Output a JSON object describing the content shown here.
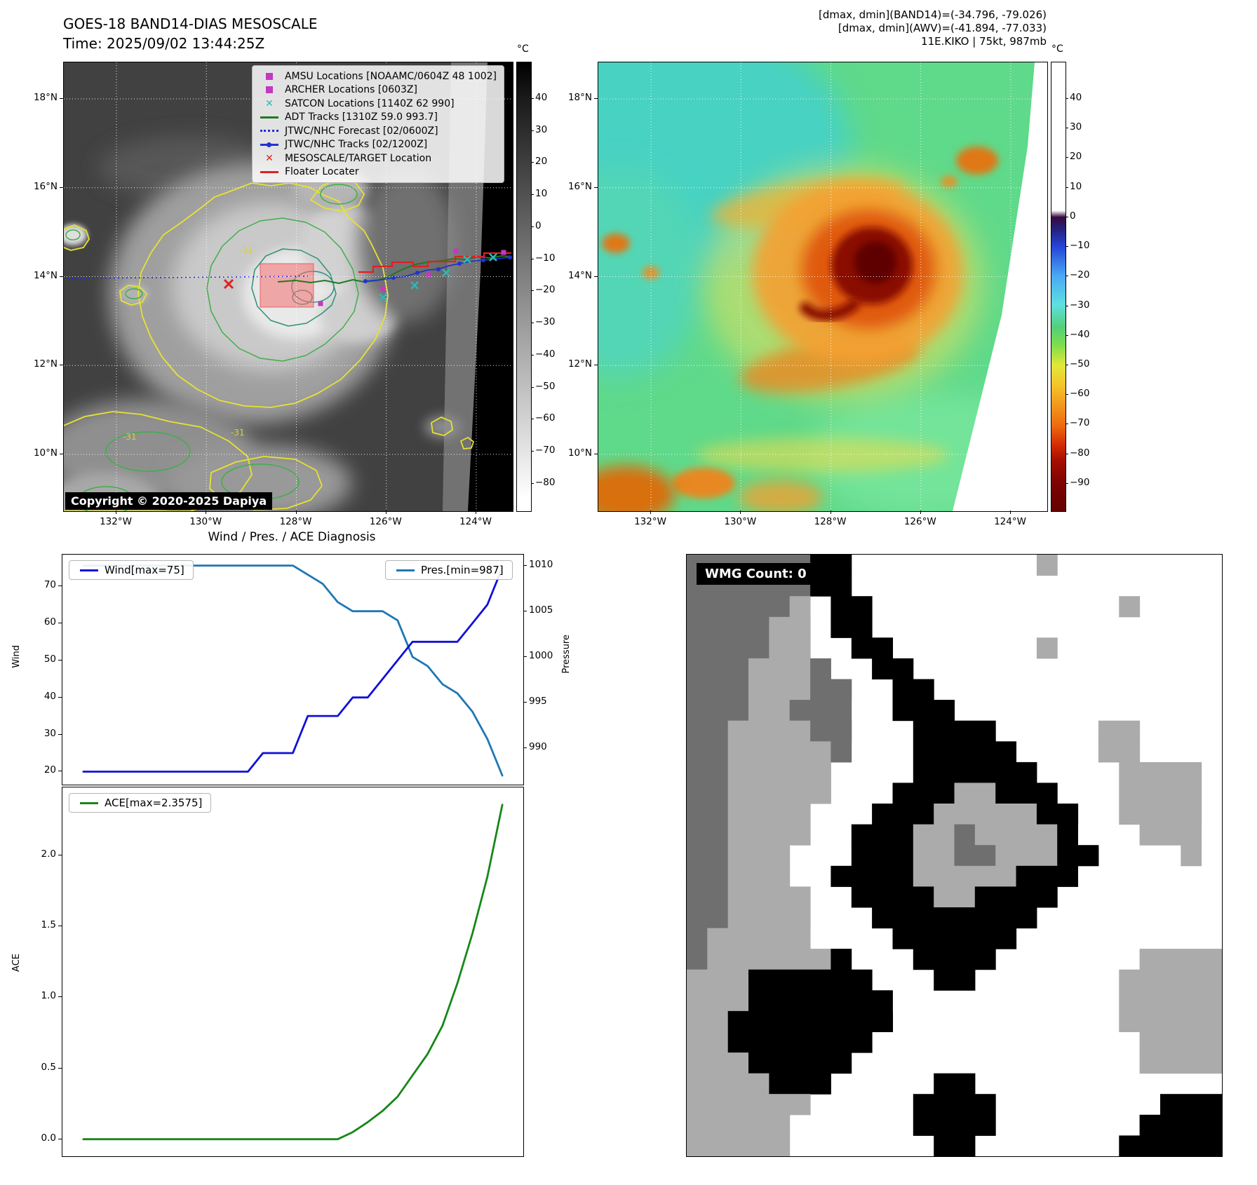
{
  "goes_panel": {
    "title": "GOES-18 BAND14-DIAS MESOSCALE",
    "subtitle": "Time: 2025/09/02 13:44:25Z",
    "copyright": "Copyright © 2020-2025 Dapiya",
    "contour_label": "-31",
    "colorbar_unit": "°C",
    "colorbar_ticks": [
      "40",
      "30",
      "20",
      "10",
      "0",
      "−10",
      "−20",
      "−30",
      "−40",
      "−50",
      "−60",
      "−70",
      "−80"
    ],
    "lat_ticks": [
      "18°N",
      "16°N",
      "14°N",
      "12°N",
      "10°N"
    ],
    "lon_ticks": [
      "132°W",
      "130°W",
      "128°W",
      "126°W",
      "124°W"
    ],
    "legend_items": [
      {
        "label": "AMSU Locations [NOAAMC/0604Z 48 1002]",
        "marker": "square",
        "color": "#c238c2"
      },
      {
        "label": "ARCHER Locations [0603Z]",
        "marker": "square",
        "color": "#c238c2"
      },
      {
        "label": "SATCON Locations [1140Z 62 990]",
        "marker": "x",
        "color": "#2cb8b8"
      },
      {
        "label": "ADT Tracks [1310Z 59.0 993.7]",
        "marker": "line",
        "color": "#1f7a1f"
      },
      {
        "label": "JTWC/NHC Forecast [02/0600Z]",
        "marker": "dotted",
        "color": "#2525e0"
      },
      {
        "label": "JTWC/NHC Tracks [02/1200Z]",
        "marker": "line-dot",
        "color": "#2233cc"
      },
      {
        "label": "MESOSCALE/TARGET Location",
        "marker": "x",
        "color": "#e02020"
      },
      {
        "label": "Floater Locater",
        "marker": "line",
        "color": "#e02020"
      }
    ]
  },
  "awv_panel": {
    "header_lines": [
      "[dmax, dmin](BAND14)=(-34.796, -79.026)",
      "[dmax, dmin](AWV)=(-41.894, -77.033)",
      "11E.KIKO | 75kt, 987mb"
    ],
    "storm_id": "11E.KIKO",
    "intensity_kt": 75,
    "pressure_mb": 987,
    "colorbar_unit": "°C",
    "colorbar_ticks": [
      "40",
      "30",
      "20",
      "10",
      "0",
      "−10",
      "−20",
      "−30",
      "−40",
      "−50",
      "−60",
      "−70",
      "−80",
      "−90"
    ],
    "lat_ticks": [
      "18°N",
      "16°N",
      "14°N",
      "12°N",
      "10°N"
    ],
    "lon_ticks": [
      "132°W",
      "130°W",
      "128°W",
      "126°W",
      "124°W"
    ]
  },
  "diagnosis_panel": {
    "title": "Wind / Pres. / ACE Diagnosis",
    "wind_legend": "Wind[max=75]",
    "pressure_legend": "Pres.[min=987]",
    "ace_legend": "ACE[max=2.3575]",
    "wind_axis_label": "Wind",
    "pressure_axis_label": "Pressure",
    "ace_axis_label": "ACE",
    "wind_ticks": [
      "70",
      "60",
      "50",
      "40",
      "30",
      "20"
    ],
    "pressure_ticks": [
      "1010",
      "1005",
      "1000",
      "995",
      "990"
    ],
    "ace_ticks": [
      "2.0",
      "1.5",
      "1.0",
      "0.5",
      "0.0"
    ]
  },
  "wmg_panel": {
    "count_label": "WMG Count: 0"
  },
  "chart_data": [
    {
      "type": "line",
      "title": "Wind / Pres. / ACE Diagnosis",
      "x_unit": "time step",
      "series": [
        {
          "name": "Wind[max=75]",
          "axis": "left",
          "color": "#1010d8",
          "max": 75,
          "values": [
            20,
            20,
            20,
            20,
            20,
            20,
            20,
            20,
            20,
            20,
            20,
            20,
            25,
            25,
            25,
            35,
            35,
            35,
            40,
            40,
            45,
            50,
            55,
            55,
            55,
            55,
            60,
            65,
            75
          ]
        },
        {
          "name": "Pres.[min=987]",
          "axis": "right",
          "color": "#1f77b4",
          "min": 987,
          "values": [
            1010,
            1010,
            1010,
            1010,
            1010,
            1010,
            1010,
            1010,
            1010,
            1010,
            1010,
            1010,
            1010,
            1010,
            1010,
            1009,
            1008,
            1006,
            1005,
            1005,
            1005,
            1004,
            1000,
            999,
            997,
            996,
            994,
            991,
            987
          ]
        }
      ],
      "left_ylabel": "Wind",
      "right_ylabel": "Pressure",
      "left_ylim": [
        16.5,
        78.5
      ],
      "right_ylim": [
        986.0,
        1011.2
      ],
      "legend_position": "upper-left-and-upper-right",
      "grid": false
    },
    {
      "type": "line",
      "series": [
        {
          "name": "ACE[max=2.3575]",
          "color": "#178717",
          "max": 2.3575,
          "values": [
            0,
            0,
            0,
            0,
            0,
            0,
            0,
            0,
            0,
            0,
            0,
            0,
            0,
            0,
            0,
            0,
            0,
            0,
            0.05,
            0.12,
            0.2,
            0.3,
            0.45,
            0.6,
            0.8,
            1.1,
            1.45,
            1.85,
            2.3575
          ]
        }
      ],
      "ylabel": "ACE",
      "ylim": [
        -0.12,
        2.48
      ],
      "legend_position": "upper-left",
      "grid": false
    }
  ]
}
